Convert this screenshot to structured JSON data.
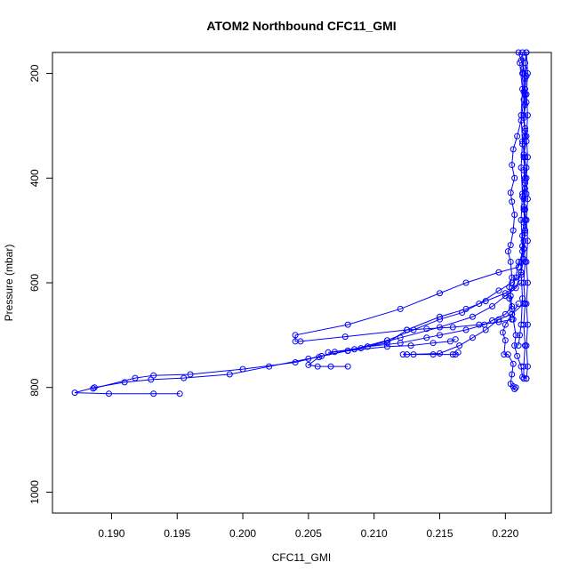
{
  "chart_data": {
    "type": "line",
    "title": "ATOM2 Northbound CFC11_GMI",
    "xlabel": "CFC11_GMI",
    "ylabel": "Pressure (mbar)",
    "xlim": [
      0.1855,
      0.2235
    ],
    "ylim": [
      1040,
      160
    ],
    "y_reversed": true,
    "x_ticks": [
      0.19,
      0.195,
      0.2,
      0.205,
      0.21,
      0.215,
      0.22
    ],
    "x_tick_labels": [
      "0.190",
      "0.195",
      "0.200",
      "0.205",
      "0.210",
      "0.215",
      "0.220"
    ],
    "y_ticks": [
      200,
      400,
      600,
      800,
      1000
    ],
    "y_tick_labels": [
      "200",
      "400",
      "600",
      "800",
      "1000"
    ],
    "grid": false,
    "legend": "none",
    "series": [
      {
        "color": "#0000ff",
        "marker": "open-circle",
        "points": [
          [
            0.221,
            160
          ],
          [
            0.2212,
            175
          ],
          [
            0.2214,
            190
          ],
          [
            0.2215,
            210
          ],
          [
            0.2214,
            235
          ],
          [
            0.2215,
            260
          ],
          [
            0.2214,
            285
          ],
          [
            0.2215,
            310
          ],
          [
            0.2213,
            335
          ],
          [
            0.2215,
            360
          ],
          [
            0.2214,
            385
          ],
          [
            0.2215,
            410
          ],
          [
            0.2213,
            435
          ],
          [
            0.2215,
            460
          ],
          [
            0.2214,
            485
          ],
          [
            0.2213,
            510
          ],
          [
            0.2214,
            535
          ],
          [
            0.2212,
            560
          ],
          [
            0.2212,
            585
          ],
          [
            0.2205,
            600
          ],
          [
            0.2195,
            615
          ],
          [
            0.218,
            640
          ],
          [
            0.2167,
            657
          ],
          [
            0.215,
            670
          ],
          [
            0.213,
            690
          ],
          [
            0.211,
            710
          ],
          [
            0.208,
            730
          ],
          [
            0.205,
            745
          ],
          [
            0.202,
            760
          ],
          [
            0.199,
            775
          ],
          [
            0.1955,
            782
          ],
          [
            0.193,
            785
          ],
          [
            0.191,
            790
          ],
          [
            0.1887,
            800
          ],
          [
            0.1872,
            810
          ],
          [
            0.1898,
            812
          ],
          [
            0.1932,
            812
          ],
          [
            0.1952,
            812
          ]
        ]
      },
      {
        "color": "#0000ff",
        "marker": "open-circle",
        "points": [
          [
            0.2216,
            160
          ],
          [
            0.2215,
            180
          ],
          [
            0.2216,
            205
          ],
          [
            0.2215,
            230
          ],
          [
            0.2216,
            255
          ],
          [
            0.2214,
            280
          ],
          [
            0.2215,
            305
          ],
          [
            0.2216,
            330
          ],
          [
            0.2214,
            355
          ],
          [
            0.2216,
            380
          ],
          [
            0.2215,
            405
          ],
          [
            0.2216,
            430
          ],
          [
            0.2214,
            455
          ],
          [
            0.2216,
            480
          ],
          [
            0.2215,
            505
          ],
          [
            0.2213,
            530
          ],
          [
            0.2214,
            555
          ],
          [
            0.2212,
            580
          ],
          [
            0.2208,
            610
          ],
          [
            0.22,
            625
          ],
          [
            0.219,
            645
          ],
          [
            0.2175,
            665
          ],
          [
            0.215,
            685
          ],
          [
            0.212,
            705
          ],
          [
            0.209,
            725
          ],
          [
            0.206,
            740
          ],
          [
            0.204,
            752
          ],
          [
            0.2,
            765
          ],
          [
            0.196,
            775
          ],
          [
            0.1932,
            777
          ],
          [
            0.1918,
            782
          ],
          [
            0.1886,
            802
          ]
        ]
      },
      {
        "color": "#0000ff",
        "marker": "open-circle",
        "points": [
          [
            0.2214,
            170
          ],
          [
            0.2213,
            200
          ],
          [
            0.2214,
            250
          ],
          [
            0.2212,
            290
          ],
          [
            0.2209,
            320
          ],
          [
            0.2206,
            345
          ],
          [
            0.2205,
            375
          ],
          [
            0.2207,
            400
          ],
          [
            0.2204,
            428
          ],
          [
            0.2205,
            445
          ],
          [
            0.2207,
            470
          ],
          [
            0.2206,
            500
          ],
          [
            0.2204,
            528
          ],
          [
            0.2202,
            540
          ],
          [
            0.2204,
            560
          ],
          [
            0.2205,
            590
          ],
          [
            0.2203,
            608
          ],
          [
            0.2204,
            625
          ],
          [
            0.2205,
            645
          ],
          [
            0.22,
            660
          ],
          [
            0.219,
            672
          ],
          [
            0.2184,
            680
          ],
          [
            0.217,
            690
          ],
          [
            0.215,
            700
          ],
          [
            0.214,
            705
          ],
          [
            0.212,
            715
          ],
          [
            0.2095,
            722
          ],
          [
            0.207,
            732
          ],
          [
            0.2058,
            742
          ],
          [
            0.205,
            757
          ],
          [
            0.2057,
            760
          ],
          [
            0.2067,
            760
          ],
          [
            0.208,
            760
          ]
        ]
      },
      {
        "color": "#0000ff",
        "marker": "open-circle",
        "points": [
          [
            0.2215,
            420
          ],
          [
            0.2214,
            460
          ],
          [
            0.2215,
            500
          ],
          [
            0.2213,
            540
          ],
          [
            0.221,
            570
          ],
          [
            0.2195,
            580
          ],
          [
            0.217,
            600
          ],
          [
            0.215,
            620
          ],
          [
            0.212,
            650
          ],
          [
            0.208,
            680
          ],
          [
            0.204,
            700
          ],
          [
            0.204,
            712
          ],
          [
            0.2044,
            712
          ],
          [
            0.2078,
            703
          ],
          [
            0.2125,
            690
          ],
          [
            0.214,
            688
          ],
          [
            0.216,
            685
          ],
          [
            0.218,
            680
          ],
          [
            0.2195,
            675
          ],
          [
            0.2205,
            670
          ]
        ]
      },
      {
        "color": "#0000ff",
        "marker": "open-circle",
        "points": [
          [
            0.2212,
            600
          ],
          [
            0.22,
            620
          ],
          [
            0.2185,
            635
          ],
          [
            0.217,
            650
          ],
          [
            0.215,
            665
          ],
          [
            0.2125,
            690
          ],
          [
            0.211,
            715
          ],
          [
            0.2095,
            722
          ],
          [
            0.2085,
            727
          ],
          [
            0.2065,
            733
          ],
          [
            0.208,
            730
          ],
          [
            0.211,
            722
          ],
          [
            0.2128,
            720
          ],
          [
            0.2145,
            715
          ],
          [
            0.2158,
            712
          ],
          [
            0.2162,
            708
          ]
        ]
      },
      {
        "color": "#0000ff",
        "marker": "open-circle",
        "points": [
          [
            0.2214,
            640
          ],
          [
            0.2205,
            660
          ],
          [
            0.2195,
            670
          ],
          [
            0.2185,
            690
          ],
          [
            0.2175,
            705
          ],
          [
            0.2165,
            720
          ],
          [
            0.215,
            735
          ],
          [
            0.2125,
            737
          ],
          [
            0.2122,
            737
          ],
          [
            0.213,
            737
          ],
          [
            0.2145,
            737
          ],
          [
            0.216,
            737
          ],
          [
            0.2162,
            737
          ],
          [
            0.2164,
            733
          ]
        ]
      },
      {
        "color": "#0000ff",
        "marker": "open-circle",
        "points": [
          [
            0.221,
            640
          ],
          [
            0.2205,
            660
          ],
          [
            0.22,
            680
          ],
          [
            0.2198,
            695
          ],
          [
            0.22,
            710
          ],
          [
            0.2199,
            737
          ],
          [
            0.2202,
            737
          ],
          [
            0.2206,
            755
          ],
          [
            0.2205,
            775
          ],
          [
            0.2204,
            793
          ],
          [
            0.2206,
            798
          ],
          [
            0.2207,
            803
          ],
          [
            0.2208,
            800
          ]
        ]
      },
      {
        "color": "#0000ff",
        "marker": "open-circle",
        "points": [
          [
            0.221,
            560
          ],
          [
            0.2208,
            590
          ],
          [
            0.2205,
            610
          ],
          [
            0.2203,
            630
          ],
          [
            0.2205,
            650
          ],
          [
            0.2206,
            670
          ],
          [
            0.2208,
            700
          ],
          [
            0.2207,
            720
          ],
          [
            0.2209,
            740
          ],
          [
            0.2212,
            760
          ],
          [
            0.2213,
            780
          ],
          [
            0.2216,
            783
          ]
        ]
      },
      {
        "color": "#0000ff",
        "marker": "open-circle",
        "points": [
          [
            0.2213,
            160
          ],
          [
            0.2214,
            200
          ],
          [
            0.2215,
            240
          ],
          [
            0.2214,
            280
          ],
          [
            0.2215,
            320
          ],
          [
            0.2214,
            360
          ],
          [
            0.2215,
            400
          ],
          [
            0.2214,
            440
          ],
          [
            0.2215,
            480
          ],
          [
            0.2214,
            520
          ],
          [
            0.2215,
            560
          ],
          [
            0.2214,
            600
          ],
          [
            0.2215,
            640
          ],
          [
            0.2214,
            680
          ],
          [
            0.2215,
            720
          ],
          [
            0.2214,
            760
          ],
          [
            0.2214,
            783
          ]
        ]
      },
      {
        "color": "#0000ff",
        "marker": "open-circle",
        "points": [
          [
            0.2216,
            160
          ],
          [
            0.2217,
            200
          ],
          [
            0.2216,
            240
          ],
          [
            0.2217,
            280
          ],
          [
            0.2216,
            320
          ],
          [
            0.2217,
            360
          ],
          [
            0.2216,
            400
          ],
          [
            0.2217,
            440
          ],
          [
            0.2216,
            480
          ],
          [
            0.2217,
            520
          ],
          [
            0.2216,
            560
          ],
          [
            0.2217,
            600
          ],
          [
            0.2216,
            640
          ],
          [
            0.2217,
            680
          ],
          [
            0.2216,
            720
          ],
          [
            0.2217,
            760
          ],
          [
            0.2216,
            783
          ]
        ]
      },
      {
        "color": "#0000ff",
        "marker": "open-circle",
        "points": [
          [
            0.2211,
            180
          ],
          [
            0.2213,
            230
          ],
          [
            0.2212,
            280
          ],
          [
            0.2213,
            330
          ],
          [
            0.2212,
            380
          ],
          [
            0.2213,
            430
          ],
          [
            0.2212,
            480
          ],
          [
            0.2213,
            530
          ],
          [
            0.2212,
            580
          ],
          [
            0.2213,
            630
          ],
          [
            0.2212,
            680
          ],
          [
            0.2211,
            700
          ],
          [
            0.221,
            720
          ]
        ]
      }
    ]
  }
}
